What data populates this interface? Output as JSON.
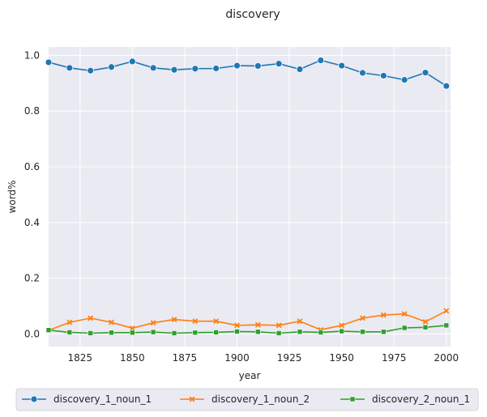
{
  "chart_data": {
    "type": "line",
    "title": "discovery",
    "xlabel": "year",
    "ylabel": "word%",
    "xlim": [
      1810,
      2002
    ],
    "ylim": [
      -0.045,
      1.03
    ],
    "x_ticks": [
      1825,
      1850,
      1875,
      1900,
      1925,
      1950,
      1975,
      2000
    ],
    "y_ticks": [
      0.0,
      0.2,
      0.4,
      0.6,
      0.8,
      1.0
    ],
    "x_tick_labels": [
      "1825",
      "1850",
      "1875",
      "1900",
      "1925",
      "1950",
      "1975",
      "2000"
    ],
    "y_tick_labels": [
      "0.0",
      "0.2",
      "0.4",
      "0.6",
      "0.8",
      "1.0"
    ],
    "grid": true,
    "background": "#eaeaf2",
    "legend_position": "bottom-center",
    "x": [
      1810,
      1820,
      1830,
      1840,
      1850,
      1860,
      1870,
      1880,
      1890,
      1900,
      1910,
      1920,
      1930,
      1940,
      1950,
      1960,
      1970,
      1980,
      1990,
      2000
    ],
    "series": [
      {
        "name": "discovery_1_noun_1",
        "color": "#1f77b4",
        "marker": "circle",
        "values": [
          0.975,
          0.955,
          0.945,
          0.958,
          0.978,
          0.955,
          0.948,
          0.952,
          0.953,
          0.963,
          0.962,
          0.97,
          0.95,
          0.982,
          0.963,
          0.937,
          0.927,
          0.912,
          0.938,
          0.89
        ]
      },
      {
        "name": "discovery_1_noun_2",
        "color": "#ff7f0e",
        "marker": "x",
        "values": [
          0.013,
          0.042,
          0.057,
          0.042,
          0.021,
          0.04,
          0.052,
          0.046,
          0.046,
          0.031,
          0.033,
          0.031,
          0.046,
          0.015,
          0.031,
          0.057,
          0.068,
          0.072,
          0.044,
          0.083
        ]
      },
      {
        "name": "discovery_2_noun_1",
        "color": "#2ca02c",
        "marker": "square",
        "values": [
          0.014,
          0.006,
          0.003,
          0.005,
          0.005,
          0.007,
          0.003,
          0.005,
          0.006,
          0.009,
          0.008,
          0.003,
          0.008,
          0.006,
          0.01,
          0.008,
          0.008,
          0.022,
          0.024,
          0.031
        ]
      }
    ]
  }
}
